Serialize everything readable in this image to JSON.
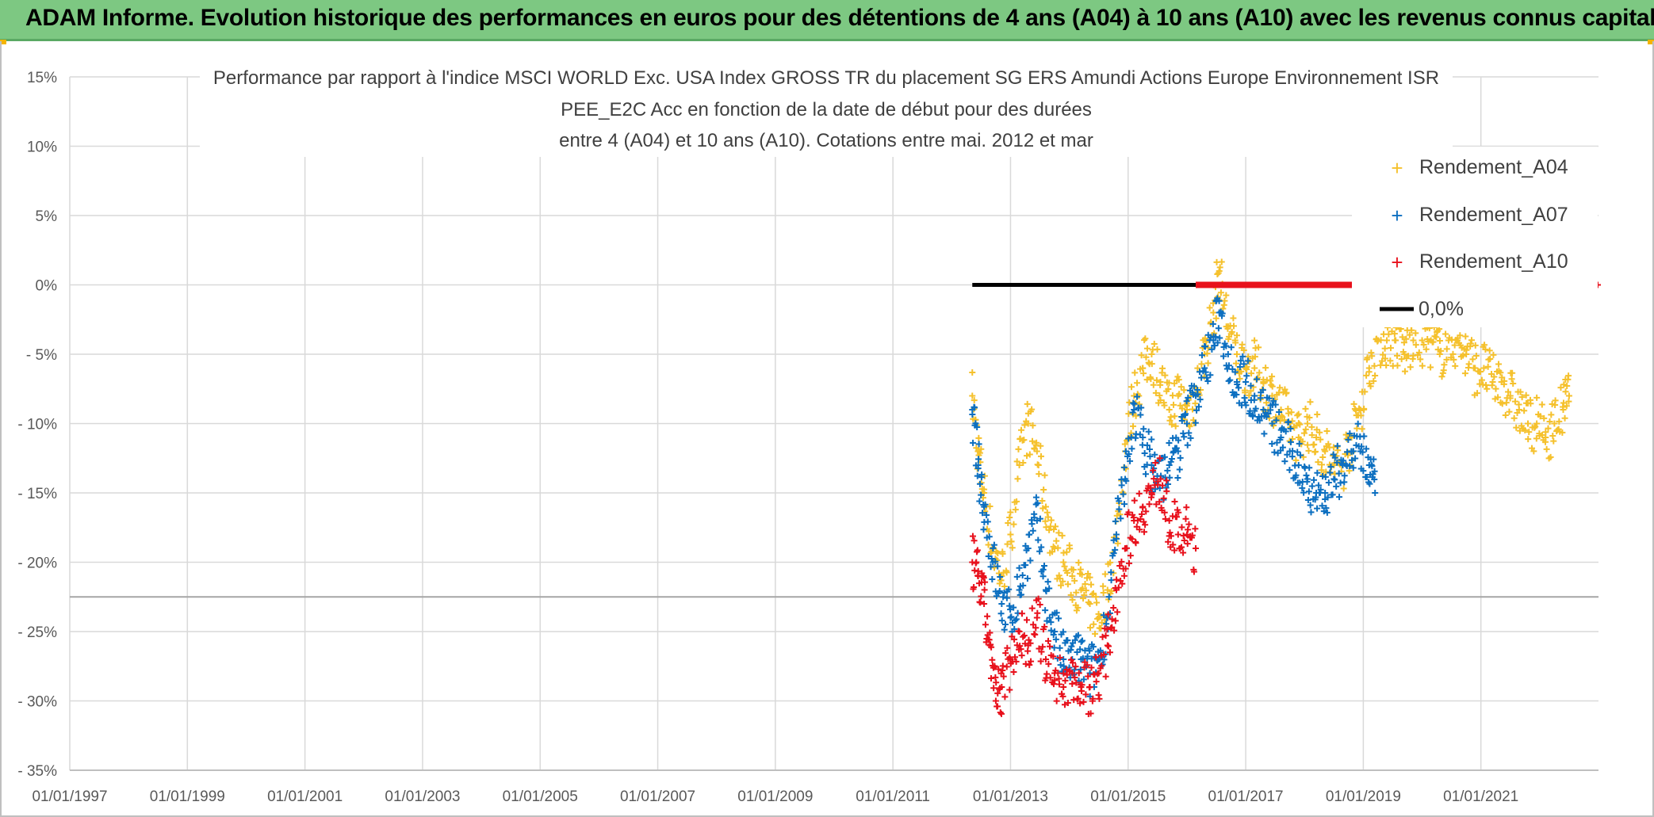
{
  "banner": {
    "text": "ADAM Informe. Evolution historique des performances en euros pour des détentions de 4 ans (A04) à 10 ans (A10) avec les revenus connus capitalisés",
    "background": "#7dc882"
  },
  "chart_data": {
    "type": "scatter",
    "title_lines": [
      "Performance par rapport à l'indice MSCI WORLD Exc. USA Index GROSS TR  du placement SG ERS Amundi Actions Europe Environnement ISR",
      "PEE_E2C Acc en fonction de la date de début pour des durées",
      "entre 4 (A04) et 10 ans (A10). Cotations entre mai. 2012 et mar"
    ],
    "xlabel": "",
    "ylabel": "",
    "x_tick_labels": [
      "01/01/1997",
      "01/01/1999",
      "01/01/2001",
      "01/01/2003",
      "01/01/2005",
      "01/01/2007",
      "01/01/2009",
      "01/01/2011",
      "01/01/2013",
      "01/01/2015",
      "01/01/2017",
      "01/01/2019",
      "01/01/2021"
    ],
    "x_range_years": [
      1997,
      2023
    ],
    "y_tick_labels": [
      "15%",
      "10%",
      "5%",
      "0%",
      "- 5%",
      "- 10%",
      "- 15%",
      "- 20%",
      "- 25%",
      "- 30%",
      "- 35%"
    ],
    "y_ticks": [
      15,
      10,
      5,
      0,
      -5,
      -10,
      -15,
      -20,
      -25,
      -30,
      -35
    ],
    "ylim": [
      -35,
      15
    ],
    "grid": true,
    "legend_position": "top-right",
    "series": [
      {
        "name": "Rendement_A04",
        "color": "#f5c12d",
        "marker": "+",
        "points": [
          [
            2012.35,
            -8
          ],
          [
            2012.45,
            -12
          ],
          [
            2012.55,
            -15
          ],
          [
            2012.7,
            -19
          ],
          [
            2012.85,
            -21
          ],
          [
            2013.0,
            -18
          ],
          [
            2013.15,
            -13
          ],
          [
            2013.3,
            -10
          ],
          [
            2013.45,
            -12
          ],
          [
            2013.6,
            -16
          ],
          [
            2013.75,
            -19
          ],
          [
            2013.9,
            -20
          ],
          [
            2014.05,
            -21
          ],
          [
            2014.2,
            -22
          ],
          [
            2014.35,
            -23
          ],
          [
            2014.5,
            -24
          ],
          [
            2014.65,
            -22
          ],
          [
            2014.8,
            -18
          ],
          [
            2014.95,
            -12
          ],
          [
            2015.1,
            -8
          ],
          [
            2015.25,
            -6
          ],
          [
            2015.4,
            -5
          ],
          [
            2015.55,
            -7
          ],
          [
            2015.7,
            -9
          ],
          [
            2015.85,
            -8
          ],
          [
            2016.0,
            -9
          ],
          [
            2016.15,
            -8
          ],
          [
            2016.3,
            -5
          ],
          [
            2016.45,
            -2
          ],
          [
            2016.55,
            1
          ],
          [
            2016.7,
            -3
          ],
          [
            2016.85,
            -5
          ],
          [
            2017.0,
            -6
          ],
          [
            2017.15,
            -6
          ],
          [
            2017.3,
            -7
          ],
          [
            2017.45,
            -8
          ],
          [
            2017.6,
            -9
          ],
          [
            2017.75,
            -10
          ],
          [
            2017.9,
            -11
          ],
          [
            2018.05,
            -10
          ],
          [
            2018.2,
            -11
          ],
          [
            2018.35,
            -12
          ],
          [
            2018.5,
            -13
          ],
          [
            2018.65,
            -13
          ],
          [
            2018.8,
            -11
          ],
          [
            2018.95,
            -9
          ],
          [
            2019.1,
            -6
          ],
          [
            2019.25,
            -4
          ],
          [
            2019.4,
            -4
          ],
          [
            2019.55,
            -4
          ],
          [
            2019.7,
            -5
          ],
          [
            2019.85,
            -4
          ],
          [
            2020.0,
            -4
          ],
          [
            2020.15,
            -4
          ],
          [
            2020.3,
            -5
          ],
          [
            2020.45,
            -4
          ],
          [
            2020.6,
            -4
          ],
          [
            2020.75,
            -5
          ],
          [
            2020.9,
            -6
          ],
          [
            2021.05,
            -6
          ],
          [
            2021.2,
            -7
          ],
          [
            2021.35,
            -7
          ],
          [
            2021.5,
            -8
          ],
          [
            2021.65,
            -9
          ],
          [
            2021.8,
            -10
          ],
          [
            2021.95,
            -10
          ],
          [
            2022.1,
            -11
          ],
          [
            2022.25,
            -10
          ],
          [
            2022.4,
            -9
          ],
          [
            2022.5,
            -8
          ]
        ]
      },
      {
        "name": "Rendement_A07",
        "color": "#0c6fc0",
        "marker": "+",
        "points": [
          [
            2012.35,
            -9
          ],
          [
            2012.45,
            -13
          ],
          [
            2012.55,
            -16
          ],
          [
            2012.7,
            -20
          ],
          [
            2012.85,
            -23
          ],
          [
            2013.0,
            -24
          ],
          [
            2013.15,
            -22
          ],
          [
            2013.3,
            -19
          ],
          [
            2013.45,
            -17
          ],
          [
            2013.6,
            -22
          ],
          [
            2013.75,
            -25
          ],
          [
            2013.9,
            -27
          ],
          [
            2014.05,
            -27
          ],
          [
            2014.2,
            -27
          ],
          [
            2014.35,
            -28
          ],
          [
            2014.5,
            -27
          ],
          [
            2014.65,
            -24
          ],
          [
            2014.8,
            -18
          ],
          [
            2014.95,
            -14
          ],
          [
            2015.1,
            -9
          ],
          [
            2015.25,
            -11
          ],
          [
            2015.4,
            -13
          ],
          [
            2015.55,
            -14
          ],
          [
            2015.7,
            -13
          ],
          [
            2015.85,
            -12
          ],
          [
            2016.0,
            -10
          ],
          [
            2016.15,
            -8
          ],
          [
            2016.3,
            -6
          ],
          [
            2016.45,
            -4
          ],
          [
            2016.55,
            -2
          ],
          [
            2016.7,
            -5
          ],
          [
            2016.85,
            -7
          ],
          [
            2017.0,
            -7
          ],
          [
            2017.15,
            -8
          ],
          [
            2017.3,
            -9
          ],
          [
            2017.45,
            -10
          ],
          [
            2017.6,
            -11
          ],
          [
            2017.75,
            -12
          ],
          [
            2017.9,
            -13
          ],
          [
            2018.05,
            -14
          ],
          [
            2018.2,
            -15
          ],
          [
            2018.35,
            -15
          ],
          [
            2018.5,
            -14
          ],
          [
            2018.65,
            -13
          ],
          [
            2018.8,
            -12
          ],
          [
            2018.95,
            -12
          ],
          [
            2019.1,
            -13
          ],
          [
            2019.2,
            -15
          ]
        ]
      },
      {
        "name": "Rendement_A10",
        "color": "#e8111c",
        "marker": "+",
        "points": [
          [
            2012.35,
            -20
          ],
          [
            2012.45,
            -21
          ],
          [
            2012.55,
            -23
          ],
          [
            2012.65,
            -26
          ],
          [
            2012.75,
            -30
          ],
          [
            2012.85,
            -29
          ],
          [
            2013.0,
            -27
          ],
          [
            2013.15,
            -25
          ],
          [
            2013.3,
            -26
          ],
          [
            2013.45,
            -24
          ],
          [
            2013.6,
            -27
          ],
          [
            2013.75,
            -28
          ],
          [
            2013.9,
            -29
          ],
          [
            2014.05,
            -28
          ],
          [
            2014.2,
            -29
          ],
          [
            2014.35,
            -29
          ],
          [
            2014.5,
            -28
          ],
          [
            2014.65,
            -26
          ],
          [
            2014.8,
            -22
          ],
          [
            2014.95,
            -19
          ],
          [
            2015.1,
            -17
          ],
          [
            2015.25,
            -16
          ],
          [
            2015.4,
            -15
          ],
          [
            2015.55,
            -14
          ],
          [
            2015.7,
            -17
          ],
          [
            2015.85,
            -18
          ],
          [
            2016.0,
            -18
          ],
          [
            2016.15,
            -19
          ]
        ]
      },
      {
        "name": "0,0%",
        "color": "#000000",
        "marker": "line",
        "points": [
          [
            2012.35,
            0
          ],
          [
            2016.15,
            0
          ]
        ]
      }
    ],
    "zero_band": {
      "color": "#e8111c",
      "x_start": 2016.15,
      "x_end": 2018.85,
      "y": 0
    },
    "legend": [
      {
        "label": "Rendement_A04",
        "color": "#f5c12d",
        "marker": "+"
      },
      {
        "label": "Rendement_A07",
        "color": "#0c6fc0",
        "marker": "+"
      },
      {
        "label": "Rendement_A10",
        "color": "#e8111c",
        "marker": "+"
      },
      {
        "label": "0,0%",
        "color": "#000000",
        "marker": "line"
      }
    ]
  }
}
